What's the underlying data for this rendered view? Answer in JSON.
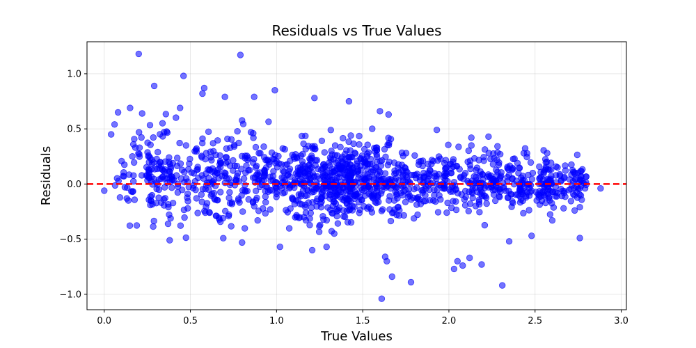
{
  "chart_data": {
    "type": "scatter",
    "title": "Residuals vs True Values",
    "xlabel": "True Values",
    "ylabel": "Residuals",
    "xlim": [
      -0.1,
      3.03
    ],
    "ylim": [
      -1.14,
      1.29
    ],
    "x_ticks": [
      0.0,
      0.5,
      1.0,
      1.5,
      2.0,
      2.5,
      3.0
    ],
    "x_tick_labels": [
      "0.0",
      "0.5",
      "1.0",
      "1.5",
      "2.0",
      "2.5",
      "3.0"
    ],
    "y_ticks": [
      -1.0,
      -0.5,
      0.0,
      0.5,
      1.0
    ],
    "y_tick_labels": [
      "−1.0",
      "−0.5",
      "0.0",
      "0.5",
      "1.0"
    ],
    "grid": true,
    "point_color": "#0000ff",
    "point_alpha": 0.55,
    "reference_line": {
      "y": 0.0,
      "color": "#ff0000",
      "style": "dashed"
    },
    "approx_point_count": 1500,
    "notable_points": [
      {
        "x": 0.2,
        "y": 1.18
      },
      {
        "x": 0.79,
        "y": 1.17
      },
      {
        "x": 0.46,
        "y": 0.98
      },
      {
        "x": 0.29,
        "y": 0.89
      },
      {
        "x": 0.99,
        "y": 0.85
      },
      {
        "x": 0.58,
        "y": 0.87
      },
      {
        "x": 0.57,
        "y": 0.82
      },
      {
        "x": 0.7,
        "y": 0.79
      },
      {
        "x": 0.87,
        "y": 0.79
      },
      {
        "x": 1.22,
        "y": 0.78
      },
      {
        "x": 1.42,
        "y": 0.75
      },
      {
        "x": 1.6,
        "y": 0.66
      },
      {
        "x": 1.65,
        "y": 0.63
      },
      {
        "x": 0.44,
        "y": 0.69
      },
      {
        "x": 0.15,
        "y": 0.69
      },
      {
        "x": 0.08,
        "y": 0.65
      },
      {
        "x": 0.22,
        "y": 0.64
      },
      {
        "x": 0.06,
        "y": 0.54
      },
      {
        "x": 0.04,
        "y": 0.45
      },
      {
        "x": 0.0,
        "y": -0.06
      },
      {
        "x": 0.12,
        "y": -0.03
      },
      {
        "x": 0.14,
        "y": -0.15
      },
      {
        "x": 0.38,
        "y": -0.51
      },
      {
        "x": 0.8,
        "y": -0.53
      },
      {
        "x": 1.02,
        "y": -0.57
      },
      {
        "x": 1.29,
        "y": -0.57
      },
      {
        "x": 1.61,
        "y": -1.04
      },
      {
        "x": 1.67,
        "y": -0.84
      },
      {
        "x": 1.78,
        "y": -0.89
      },
      {
        "x": 1.64,
        "y": -0.7
      },
      {
        "x": 1.63,
        "y": -0.66
      },
      {
        "x": 2.03,
        "y": -0.77
      },
      {
        "x": 2.08,
        "y": -0.74
      },
      {
        "x": 2.31,
        "y": -0.92
      },
      {
        "x": 2.19,
        "y": -0.73
      },
      {
        "x": 2.12,
        "y": -0.67
      },
      {
        "x": 2.05,
        "y": -0.7
      },
      {
        "x": 2.35,
        "y": -0.52
      },
      {
        "x": 2.48,
        "y": -0.47
      },
      {
        "x": 2.76,
        "y": -0.49
      },
      {
        "x": 2.88,
        "y": -0.04
      },
      {
        "x": 2.79,
        "y": -0.04
      },
      {
        "x": 2.73,
        "y": -0.24
      },
      {
        "x": 2.76,
        "y": -0.21
      },
      {
        "x": 2.6,
        "y": -0.33
      },
      {
        "x": 2.63,
        "y": 0.15
      },
      {
        "x": 2.57,
        "y": 0.28
      },
      {
        "x": 2.23,
        "y": 0.43
      },
      {
        "x": 2.13,
        "y": 0.42
      },
      {
        "x": 1.93,
        "y": 0.49
      }
    ]
  }
}
